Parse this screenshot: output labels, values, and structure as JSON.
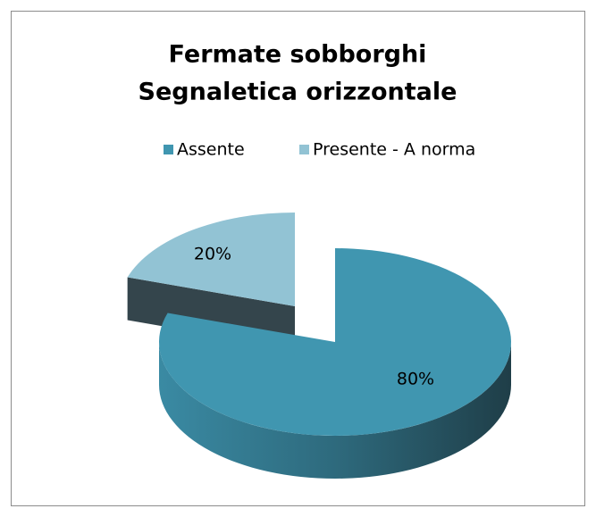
{
  "chart_data": {
    "type": "pie3d",
    "title": [
      "Fermate sobborghi",
      "Segnaletica orizzontale"
    ],
    "categories": [
      "Assente",
      "Presente - A norma"
    ],
    "values": [
      80,
      20
    ],
    "value_labels": [
      "80%",
      "20%"
    ],
    "colors": [
      "#4096b0",
      "#92c3d4"
    ],
    "legend": "top"
  }
}
